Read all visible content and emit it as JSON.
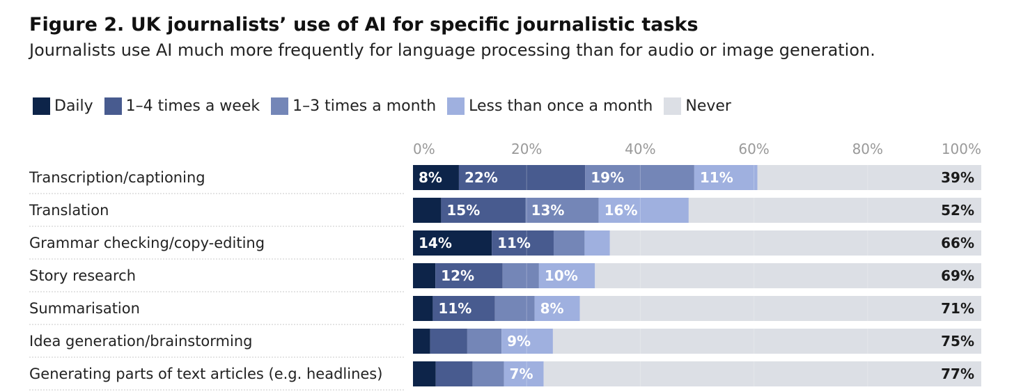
{
  "chart_data": {
    "type": "bar",
    "orientation": "horizontal",
    "stacked": true,
    "title": "Figure 2. UK journalists’ use of AI for specific journalistic tasks",
    "subtitle": "Journalists use AI much more frequently for language processing than for audio or image generation.",
    "xlim": [
      0,
      100
    ],
    "ticks": [
      "0%",
      "20%",
      "40%",
      "60%",
      "80%",
      "100%"
    ],
    "legend_position": "top-left",
    "categories": [
      "Transcription/captioning",
      "Translation",
      "Grammar checking/copy-editing",
      "Story research",
      "Summarisation",
      "Idea generation/brainstorming",
      "Generating parts of text articles (e.g. headlines)"
    ],
    "series": [
      {
        "name": "Daily",
        "color": "#0d2449",
        "values": [
          8,
          5,
          14,
          4,
          3.5,
          3,
          4
        ],
        "labels": [
          "8%",
          "",
          "14%",
          "",
          "",
          "",
          ""
        ]
      },
      {
        "name": "1–4 times a week",
        "color": "#485b8f",
        "values": [
          22,
          15,
          11,
          12,
          11,
          6.5,
          6.5
        ],
        "labels": [
          "22%",
          "15%",
          "11%",
          "12%",
          "11%",
          "",
          ""
        ]
      },
      {
        "name": "1–3 times a month",
        "color": "#7486b7",
        "values": [
          19,
          13,
          5.5,
          6.5,
          7,
          6,
          5.5
        ],
        "labels": [
          "19%",
          "13%",
          "",
          "",
          "",
          "",
          ""
        ]
      },
      {
        "name": "Less than once a month",
        "color": "#9fb0df",
        "values": [
          11,
          16,
          4.5,
          10,
          8,
          9,
          7
        ],
        "labels": [
          "11%",
          "16%",
          "",
          "10%",
          "8%",
          "9%",
          "7%"
        ]
      },
      {
        "name": "Never",
        "color": "#dcdfe5",
        "values": [
          39,
          52,
          66,
          69,
          71,
          75,
          77
        ],
        "labels": [
          "39%",
          "52%",
          "66%",
          "69%",
          "71%",
          "75%",
          "77%"
        ]
      }
    ]
  }
}
